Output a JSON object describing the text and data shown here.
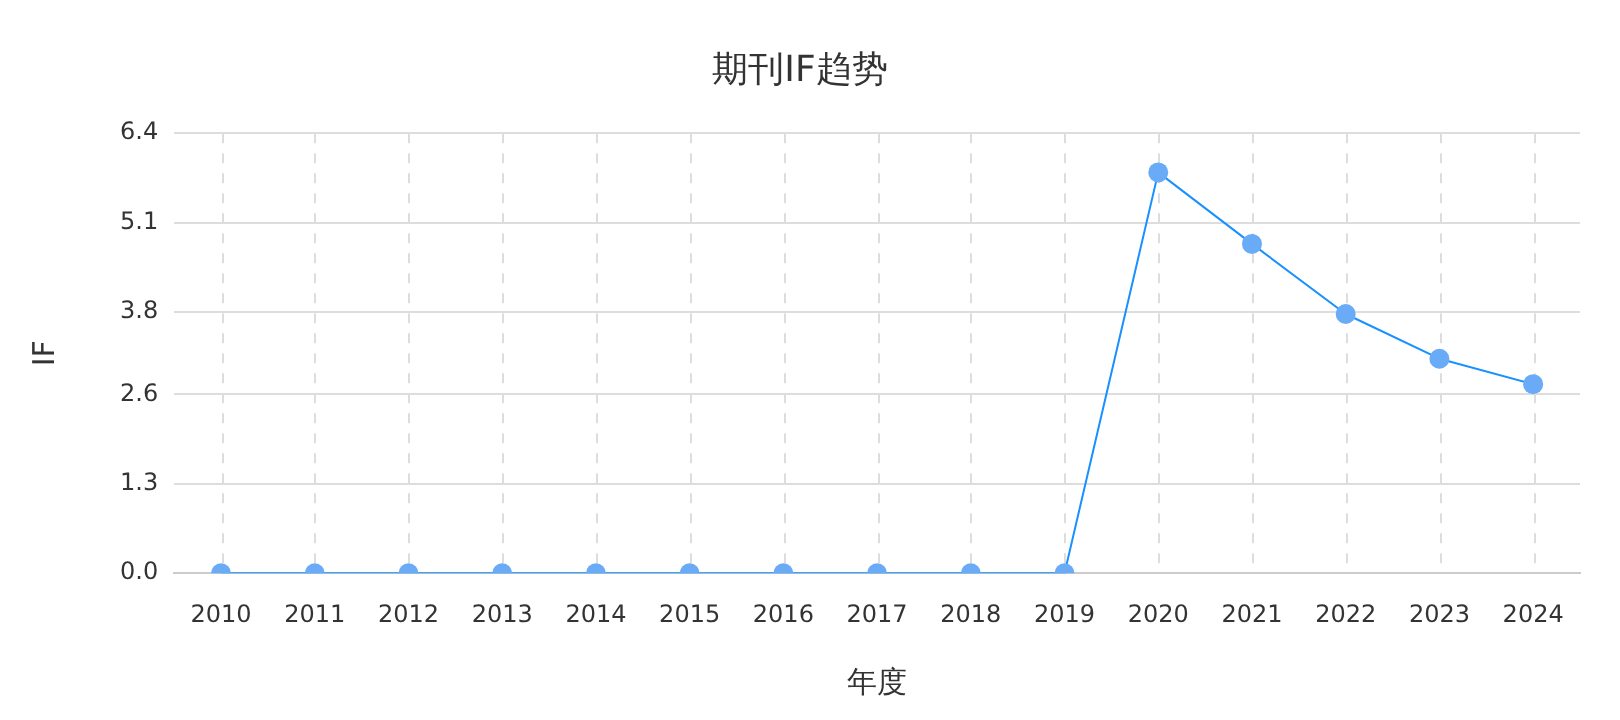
{
  "chart_data": {
    "type": "line",
    "title": "期刊IF趋势",
    "xlabel": "年度",
    "ylabel": "IF",
    "categories": [
      "2010",
      "2011",
      "2012",
      "2013",
      "2014",
      "2015",
      "2016",
      "2017",
      "2018",
      "2019",
      "2020",
      "2021",
      "2022",
      "2023",
      "2024"
    ],
    "series": [
      {
        "color": "#1890ff",
        "values": [
          0,
          0,
          0,
          0,
          0,
          0,
          0,
          0,
          0,
          0,
          5.83,
          4.79,
          3.77,
          3.12,
          2.75
        ]
      }
    ],
    "ylim": [
      0,
      6.4
    ],
    "yticks": [
      {
        "value": 0,
        "label": "0.0"
      },
      {
        "value": 1.3,
        "label": "1.3"
      },
      {
        "value": 2.6,
        "label": "2.6"
      },
      {
        "value": 3.8,
        "label": "3.8"
      },
      {
        "value": 5.1,
        "label": "5.1"
      },
      {
        "value": 6.4,
        "label": "6.4"
      }
    ],
    "grid": true,
    "marker": "circle",
    "line_style": "solid",
    "legend": false
  }
}
